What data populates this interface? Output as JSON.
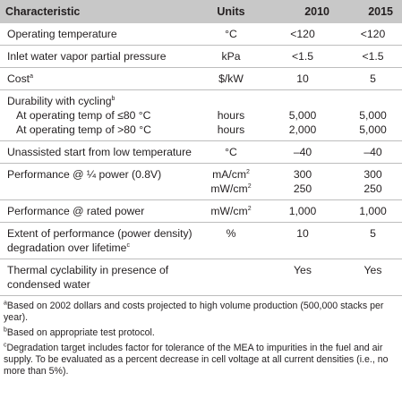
{
  "header": {
    "characteristic": "Characteristic",
    "units": "Units",
    "y2010": "2010",
    "y2015": "2015"
  },
  "rows": {
    "op_temp": {
      "label": "Operating temperature",
      "units": "°C",
      "v2010": "<120",
      "v2015": "<120"
    },
    "inlet": {
      "label": "Inlet water vapor partial pressure",
      "units": "kPa",
      "v2010": "<1.5",
      "v2015": "<1.5"
    },
    "cost": {
      "label": "Cost",
      "sup": "a",
      "units": "$/kW",
      "v2010": "10",
      "v2015": "5"
    },
    "durability": {
      "label": "Durability with cycling",
      "sup": "b",
      "sub1": "At operating temp of ≤80 °C",
      "u1": "hours",
      "a1": "5,000",
      "b1": "5,000",
      "sub2": "At operating temp of >80 °C",
      "u2": "hours",
      "a2": "2,000",
      "b2": "5,000"
    },
    "start": {
      "label": "Unassisted start from low temperature",
      "units": "°C",
      "v2010": "–40",
      "v2015": "–40"
    },
    "perf_quarter": {
      "label": "Performance @ ¼ power (0.8V)",
      "u1": "mA/cm",
      "u1sup": "2",
      "a1": "300",
      "b1": "300",
      "u2": "mW/cm",
      "u2sup": "2",
      "a2": "250",
      "b2": "250"
    },
    "perf_rated": {
      "label": "Performance @ rated power",
      "units": "mW/cm",
      "usup": "2",
      "v2010": "1,000",
      "v2015": "1,000"
    },
    "extent": {
      "line1": "Extent of performance (power density)",
      "line2": "degradation over lifetime",
      "sup": "c",
      "units": "%",
      "v2010": "10",
      "v2015": "5"
    },
    "thermal": {
      "line1": "Thermal cyclability in presence of",
      "line2": "condensed water",
      "units": "",
      "v2010": "Yes",
      "v2015": "Yes"
    }
  },
  "notes": {
    "a_sup": "a",
    "a": "Based on 2002 dollars and costs projected to high volume production (500,000 stacks per year).",
    "b_sup": "b",
    "b": "Based on appropriate test protocol.",
    "c_sup": "c",
    "c": "Degradation target includes factor for tolerance of the MEA to impurities in the fuel and air supply. To be evaluated as a percent decrease in cell voltage at all current densities (i.e., no more than 5%)."
  }
}
